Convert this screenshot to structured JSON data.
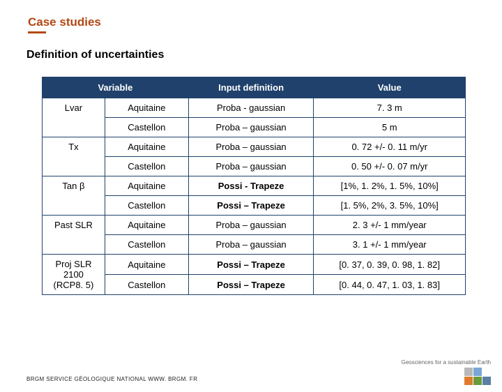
{
  "headings": {
    "h1": "Case studies",
    "h2": "Definition of uncertainties"
  },
  "table": {
    "header_bg": "#20416b",
    "header_fg": "#ffffff",
    "border_color": "#20416b",
    "columns": [
      "Variable",
      "Input definition",
      "Value"
    ],
    "col_widths": [
      "90px",
      "120px",
      "180px",
      "218px"
    ],
    "rows": [
      {
        "var": "Lvar",
        "loc": "Aquitaine",
        "def": "Proba - gaussian",
        "def_bold": false,
        "val": "7. 3 m",
        "rowspan": 2
      },
      {
        "var": "",
        "loc": "Castellon",
        "def": "Proba – gaussian",
        "def_bold": false,
        "val": "5 m",
        "rowspan": 0
      },
      {
        "var": "Tx",
        "loc": "Aquitaine",
        "def": "Proba – gaussian",
        "def_bold": false,
        "val": "0. 72 +/- 0. 11 m/yr",
        "rowspan": 2
      },
      {
        "var": "",
        "loc": "Castellon",
        "def": "Proba – gaussian",
        "def_bold": false,
        "val": "0. 50 +/- 0. 07 m/yr",
        "rowspan": 0
      },
      {
        "var": "Tan β",
        "loc": "Aquitaine",
        "def": "Possi - Trapeze",
        "def_bold": true,
        "val": "[1%, 1. 2%, 1. 5%, 10%]",
        "rowspan": 2
      },
      {
        "var": "",
        "loc": "Castellon",
        "def": "Possi – Trapeze",
        "def_bold": true,
        "val": "[1. 5%, 2%, 3. 5%, 10%]",
        "rowspan": 0
      },
      {
        "var": "Past SLR",
        "loc": "Aquitaine",
        "def": "Proba – gaussian",
        "def_bold": false,
        "val": "2. 3 +/- 1 mm/year",
        "rowspan": 2
      },
      {
        "var": "",
        "loc": "Castellon",
        "def": "Proba – gaussian",
        "def_bold": false,
        "val": "3. 1 +/- 1 mm/year",
        "rowspan": 0
      },
      {
        "var": "Proj SLR 2100 (RCP8. 5)",
        "loc": "Aquitaine",
        "def": "Possi – Trapeze",
        "def_bold": true,
        "val": "[0. 37, 0. 39, 0. 98, 1. 82]",
        "rowspan": 2
      },
      {
        "var": "",
        "loc": "Castellon",
        "def": "Possi – Trapeze",
        "def_bold": true,
        "val": "[0. 44, 0. 47, 1. 03, 1. 83]",
        "rowspan": 0
      }
    ]
  },
  "footer": "BRGM SERVICE GÉOLOGIQUE NATIONAL WWW. BRGM. FR",
  "logo": {
    "tagline": "Geosciences for a sustainable Earth",
    "colors": [
      "#b9b9b9",
      "#7aa6d6",
      "#ffffff",
      "#e07b2e",
      "#6a9b3a",
      "#5c7fa6"
    ]
  },
  "colors": {
    "accent": "#b34814"
  }
}
